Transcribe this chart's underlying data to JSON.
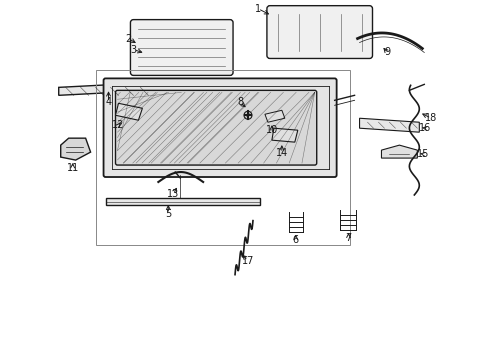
{
  "bg_color": "#ffffff",
  "line_color": "#1a1a1a",
  "fig_width": 4.89,
  "fig_height": 3.6,
  "dpi": 100,
  "hatch_color": "#555555",
  "box_color": "#aaaaaa"
}
